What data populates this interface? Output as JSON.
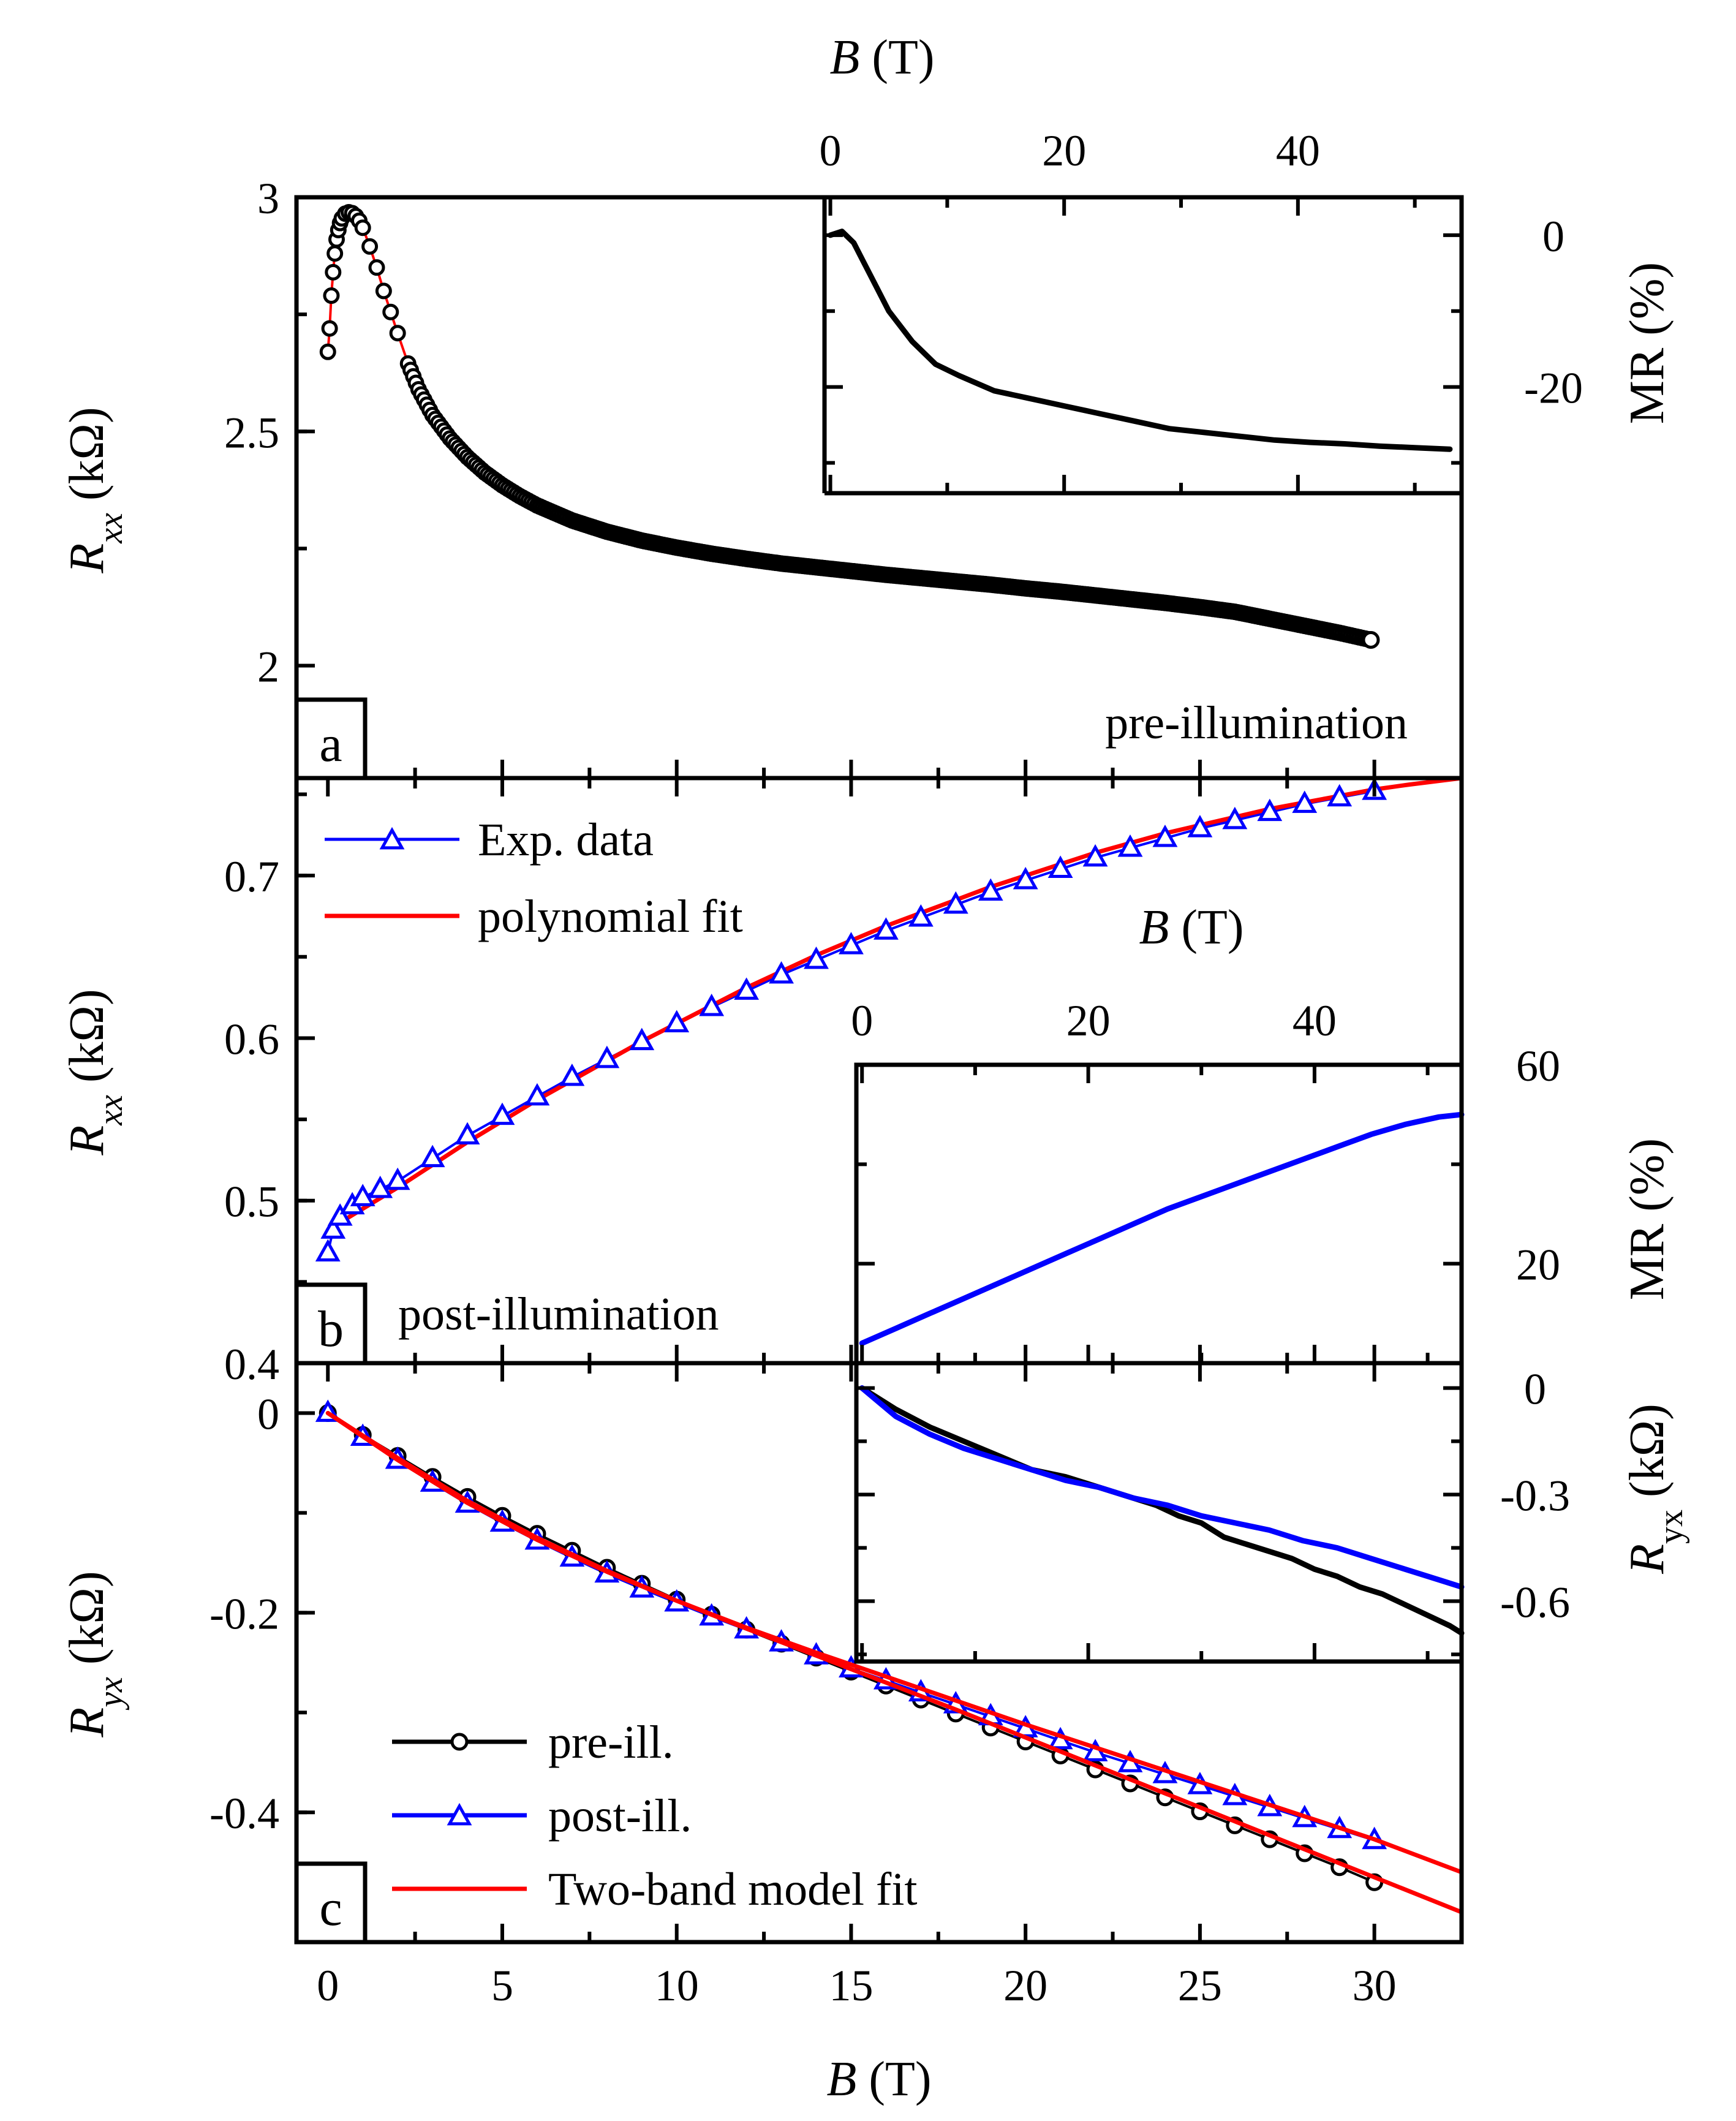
{
  "colors": {
    "pre": "#000000",
    "post": "#0000ff",
    "fit": "#ff0000"
  },
  "chart_data": [
    {
      "panel": "a",
      "type": "scatter",
      "note": "pre-illumination",
      "xlabel": "",
      "ylabel": {
        "main": "R",
        "sub": "xx",
        "unit": " (kΩ)"
      },
      "xlim": [
        -0.9,
        32.5
      ],
      "ylim": [
        1.76,
        3.0
      ],
      "yticks": [
        {
          "v": 2,
          "l": "2"
        },
        {
          "v": 2.5,
          "l": "2.5"
        },
        {
          "v": 3,
          "l": "3"
        }
      ],
      "series": [
        {
          "name": "",
          "x": [
            0.0,
            0.05,
            0.1,
            0.15,
            0.2,
            0.25,
            0.3,
            0.35,
            0.4,
            0.5,
            0.6,
            0.7,
            0.8,
            0.9,
            1.0,
            1.2,
            1.4,
            1.6,
            1.8,
            2.0,
            2.3,
            2.6,
            3.0,
            3.5,
            4.0,
            4.5,
            5.0,
            5.5,
            6.0,
            7.0,
            8.0,
            9.0,
            10.0,
            11.0,
            12.0,
            13.0,
            14.0,
            15.0,
            16.0,
            17.0,
            18.0,
            19.0,
            20.0,
            21.0,
            22.0,
            23.0,
            24.0,
            25.0,
            26.0,
            27.0,
            28.0,
            29.0,
            29.9
          ],
          "y": [
            2.67,
            2.72,
            2.79,
            2.84,
            2.88,
            2.91,
            2.93,
            2.945,
            2.955,
            2.965,
            2.968,
            2.966,
            2.96,
            2.95,
            2.935,
            2.895,
            2.85,
            2.8,
            2.755,
            2.71,
            2.645,
            2.59,
            2.535,
            2.485,
            2.445,
            2.412,
            2.385,
            2.362,
            2.342,
            2.31,
            2.286,
            2.267,
            2.252,
            2.239,
            2.228,
            2.218,
            2.21,
            2.202,
            2.194,
            2.187,
            2.18,
            2.173,
            2.165,
            2.158,
            2.15,
            2.142,
            2.134,
            2.125,
            2.115,
            2.1,
            2.085,
            2.07,
            2.055
          ]
        }
      ],
      "inset": {
        "xlabel": {
          "main": "B",
          "unit": " (T)"
        },
        "ylabel": "MR (%)",
        "xlim": [
          -0.5,
          54
        ],
        "ylim": [
          -34,
          5
        ],
        "xticks": [
          {
            "v": 0,
            "l": "0"
          },
          {
            "v": 20,
            "l": "20"
          },
          {
            "v": 40,
            "l": "40"
          }
        ],
        "yticks": [
          {
            "v": 0,
            "l": "0"
          },
          {
            "v": -20,
            "l": "-20"
          }
        ],
        "x": [
          0,
          1,
          2,
          3,
          4,
          5,
          7,
          9,
          11,
          14,
          17,
          20,
          23,
          26,
          29,
          32,
          35,
          38,
          41,
          44,
          47,
          50,
          53
        ],
        "y": [
          0,
          0.5,
          -1,
          -4,
          -7,
          -10,
          -14,
          -17,
          -18.5,
          -20.5,
          -21.5,
          -22.5,
          -23.5,
          -24.5,
          -25.5,
          -26,
          -26.5,
          -27,
          -27.3,
          -27.5,
          -27.8,
          -28,
          -28.2
        ]
      }
    },
    {
      "panel": "b",
      "type": "line",
      "note": "post-illumination",
      "xlabel": "",
      "ylabel": {
        "main": "R",
        "sub": "xx",
        "unit": " (kΩ)"
      },
      "xlim": [
        -0.9,
        32.5
      ],
      "ylim": [
        0.4,
        0.76
      ],
      "yticks": [
        {
          "v": 0.4,
          "l": "0.4"
        },
        {
          "v": 0.5,
          "l": "0.5"
        },
        {
          "v": 0.6,
          "l": "0.6"
        },
        {
          "v": 0.7,
          "l": "0.7"
        }
      ],
      "legend": [
        "Exp. data",
        "polynomial fit"
      ],
      "series": [
        {
          "name": "Exp. data",
          "x": [
            0.0,
            0.15,
            0.35,
            0.7,
            1.0,
            1.5,
            2.0,
            3.0,
            4.0,
            5.0,
            6.0,
            7.0,
            8.0,
            9.0,
            10.0,
            11.0,
            12.0,
            13.0,
            14.0,
            15.0,
            16.0,
            17.0,
            18.0,
            19.0,
            20.0,
            21.0,
            22.0,
            23.0,
            24.0,
            25.0,
            26.0,
            27.0,
            28.0,
            29.0,
            30.0
          ],
          "y": [
            0.468,
            0.482,
            0.49,
            0.497,
            0.502,
            0.507,
            0.512,
            0.526,
            0.54,
            0.552,
            0.564,
            0.576,
            0.587,
            0.598,
            0.609,
            0.619,
            0.629,
            0.639,
            0.648,
            0.657,
            0.666,
            0.674,
            0.682,
            0.69,
            0.697,
            0.704,
            0.711,
            0.717,
            0.723,
            0.729,
            0.734,
            0.739,
            0.744,
            0.748,
            0.752
          ]
        },
        {
          "name": "polynomial fit",
          "x": [
            0,
            1,
            2,
            3,
            4,
            5,
            6,
            7,
            8,
            9,
            10,
            11,
            12,
            13,
            14,
            15,
            16,
            17,
            18,
            19,
            20,
            21,
            22,
            23,
            24,
            25,
            26,
            27,
            28,
            29,
            30,
            31,
            32.5
          ],
          "y": [
            0.482,
            0.495,
            0.508,
            0.522,
            0.536,
            0.549,
            0.562,
            0.574,
            0.586,
            0.598,
            0.609,
            0.62,
            0.631,
            0.641,
            0.651,
            0.66,
            0.669,
            0.677,
            0.685,
            0.693,
            0.7,
            0.707,
            0.714,
            0.72,
            0.726,
            0.731,
            0.736,
            0.741,
            0.745,
            0.749,
            0.753,
            0.756,
            0.76
          ]
        }
      ],
      "inset": {
        "xlabel": {
          "main": "B",
          "unit": " (T)"
        },
        "ylabel": "MR (%)",
        "xlim": [
          -0.5,
          53
        ],
        "ylim": [
          0,
          60
        ],
        "xticks": [
          {
            "v": 0,
            "l": "0"
          },
          {
            "v": 20,
            "l": "20"
          },
          {
            "v": 40,
            "l": "40"
          }
        ],
        "yticks": [
          {
            "v": 20,
            "l": "20"
          },
          {
            "v": 60,
            "l": "60"
          }
        ],
        "x": [
          0,
          3,
          6,
          9,
          12,
          15,
          18,
          21,
          24,
          27,
          30,
          33,
          36,
          39,
          42,
          45,
          48,
          51,
          53
        ],
        "y": [
          4,
          7,
          10,
          13,
          16,
          19,
          22,
          25,
          28,
          31,
          33.5,
          36,
          38.5,
          41,
          43.5,
          46,
          48,
          49.5,
          50
        ]
      }
    },
    {
      "panel": "c",
      "type": "line",
      "xlabel": {
        "main": "B",
        "unit": " (T)"
      },
      "ylabel": {
        "main": "R",
        "sub": "yx",
        "unit": " (kΩ)"
      },
      "xlim": [
        -0.9,
        32.5
      ],
      "ylim": [
        -0.53,
        0.05
      ],
      "xticks": [
        {
          "v": 0,
          "l": "0"
        },
        {
          "v": 5,
          "l": "5"
        },
        {
          "v": 10,
          "l": "10"
        },
        {
          "v": 15,
          "l": "15"
        },
        {
          "v": 20,
          "l": "20"
        },
        {
          "v": 25,
          "l": "25"
        },
        {
          "v": 30,
          "l": "30"
        }
      ],
      "yticks": [
        {
          "v": 0,
          "l": "0"
        },
        {
          "v": -0.2,
          "l": "-0.2"
        },
        {
          "v": -0.4,
          "l": "-0.4"
        }
      ],
      "legend": [
        "pre-ill.",
        "post-ill.",
        "Two-band model fit"
      ],
      "series": [
        {
          "name": "pre-ill.",
          "x": [
            0,
            1,
            2,
            3,
            4,
            5,
            6,
            7,
            8,
            9,
            10,
            11,
            12,
            13,
            14,
            15,
            16,
            17,
            18,
            19,
            20,
            21,
            22,
            23,
            24,
            25,
            26,
            27,
            28,
            29,
            30
          ],
          "y": [
            0.0,
            -0.022,
            -0.043,
            -0.064,
            -0.084,
            -0.103,
            -0.121,
            -0.138,
            -0.155,
            -0.171,
            -0.187,
            -0.202,
            -0.217,
            -0.231,
            -0.245,
            -0.259,
            -0.273,
            -0.287,
            -0.301,
            -0.315,
            -0.329,
            -0.343,
            -0.357,
            -0.371,
            -0.385,
            -0.399,
            -0.413,
            -0.427,
            -0.441,
            -0.455,
            -0.47
          ]
        },
        {
          "name": "post-ill.",
          "x": [
            0,
            1,
            2,
            3,
            4,
            5,
            6,
            7,
            8,
            9,
            10,
            11,
            12,
            13,
            14,
            15,
            16,
            17,
            18,
            19,
            20,
            21,
            22,
            23,
            24,
            25,
            26,
            27,
            28,
            29,
            30
          ],
          "y": [
            0.0,
            -0.024,
            -0.047,
            -0.07,
            -0.091,
            -0.11,
            -0.128,
            -0.145,
            -0.161,
            -0.176,
            -0.19,
            -0.204,
            -0.217,
            -0.23,
            -0.243,
            -0.256,
            -0.268,
            -0.28,
            -0.292,
            -0.304,
            -0.316,
            -0.328,
            -0.34,
            -0.351,
            -0.362,
            -0.373,
            -0.384,
            -0.395,
            -0.406,
            -0.417,
            -0.428
          ]
        },
        {
          "name": "Two-band model fit",
          "x": [
            0,
            2,
            4,
            6,
            8,
            10,
            12,
            14,
            16,
            18,
            20,
            22,
            24,
            26,
            28,
            30,
            32.5
          ],
          "y": [
            0.0,
            -0.045,
            -0.088,
            -0.125,
            -0.158,
            -0.188,
            -0.216,
            -0.243,
            -0.27,
            -0.297,
            -0.325,
            -0.353,
            -0.381,
            -0.409,
            -0.437,
            -0.465,
            -0.5
          ]
        },
        {
          "name": "Two-band model fit",
          "x": [
            0,
            2,
            4,
            6,
            8,
            10,
            12,
            14,
            16,
            18,
            20,
            22,
            24,
            26,
            28,
            30,
            32.5
          ],
          "y": [
            0.0,
            -0.047,
            -0.09,
            -0.127,
            -0.159,
            -0.188,
            -0.215,
            -0.24,
            -0.264,
            -0.288,
            -0.312,
            -0.335,
            -0.358,
            -0.381,
            -0.404,
            -0.427,
            -0.46
          ]
        }
      ],
      "inset": {
        "ylabel": {
          "main": "R",
          "sub": "yx",
          "unit": " (kΩ)"
        },
        "xlim": [
          -0.5,
          53
        ],
        "ylim": [
          -0.77,
          0.07
        ],
        "yticks": [
          {
            "v": 0,
            "l": "0"
          },
          {
            "v": -0.3,
            "l": "-0.3"
          },
          {
            "v": -0.6,
            "l": "-0.6"
          }
        ],
        "series": [
          {
            "name": "pre-ill.",
            "x": [
              0,
              3,
              6,
              9,
              12,
              15,
              18,
              21,
              24,
              26,
              28,
              30,
              32,
              34,
              36,
              38,
              40,
              42,
              44,
              46,
              48,
              50,
              52,
              53
            ],
            "y": [
              0.0,
              -0.06,
              -0.11,
              -0.15,
              -0.19,
              -0.23,
              -0.25,
              -0.28,
              -0.31,
              -0.33,
              -0.36,
              -0.38,
              -0.42,
              -0.44,
              -0.46,
              -0.48,
              -0.51,
              -0.53,
              -0.56,
              -0.58,
              -0.61,
              -0.64,
              -0.67,
              -0.69
            ]
          },
          {
            "name": "post-ill.",
            "x": [
              0,
              3,
              6,
              9,
              12,
              15,
              18,
              21,
              24,
              27,
              30,
              33,
              36,
              39,
              42,
              45,
              48,
              51,
              53
            ],
            "y": [
              0.0,
              -0.08,
              -0.13,
              -0.17,
              -0.2,
              -0.23,
              -0.26,
              -0.28,
              -0.31,
              -0.33,
              -0.36,
              -0.38,
              -0.4,
              -0.43,
              -0.45,
              -0.48,
              -0.51,
              -0.54,
              -0.56
            ]
          }
        ]
      }
    }
  ]
}
